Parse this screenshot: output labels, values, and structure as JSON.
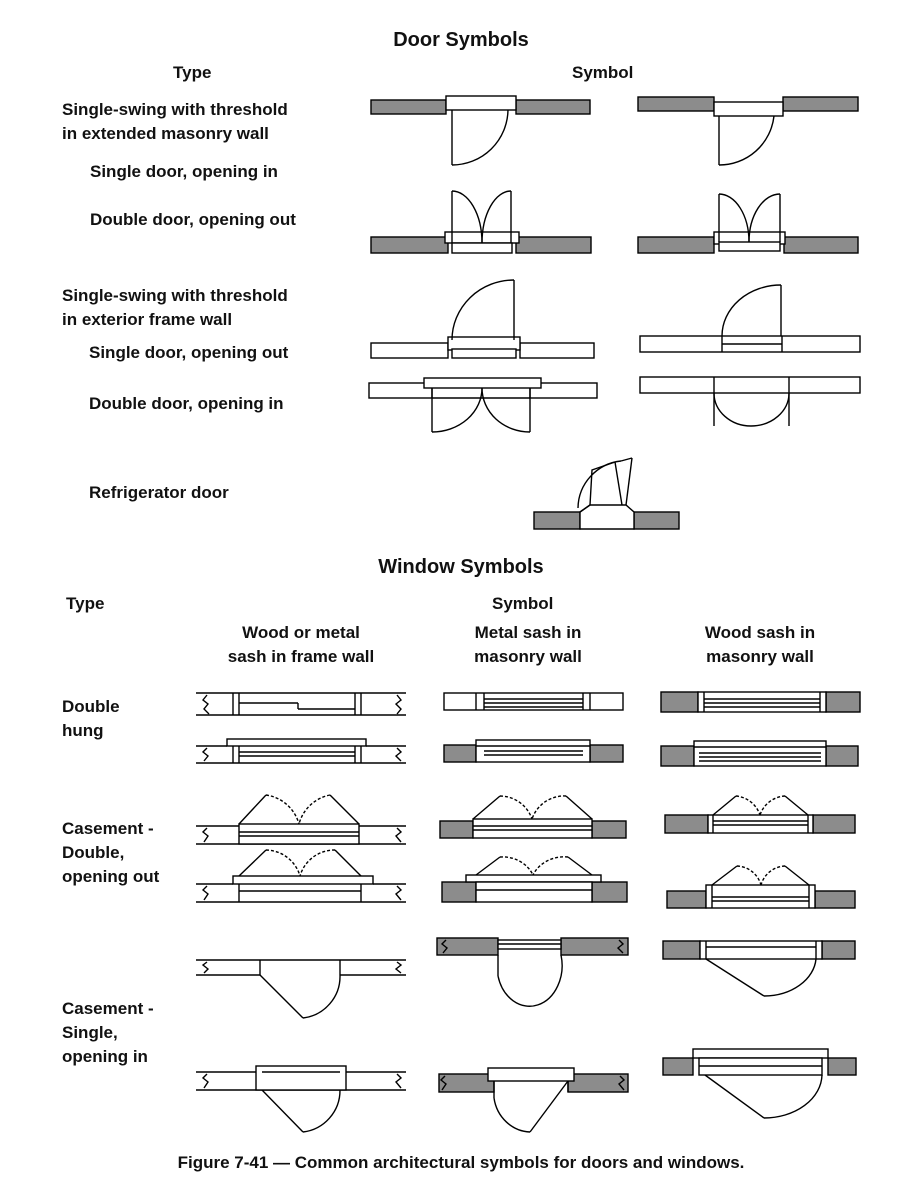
{
  "door_section": {
    "title": "Door Symbols",
    "type_header": "Type",
    "symbol_header": "Symbol",
    "rows": [
      {
        "label": "Single-swing with threshold\nin extended masonry wall"
      },
      {
        "label": "Single door, opening in"
      },
      {
        "label": "Double door, opening out"
      },
      {
        "label": "Single-swing with threshold\nin exterior frame wall"
      },
      {
        "label": "Single door, opening out"
      },
      {
        "label": "Double door, opening in"
      },
      {
        "label": "Refrigerator door"
      }
    ]
  },
  "window_section": {
    "title": "Window Symbols",
    "type_header": "Type",
    "symbol_header": "Symbol",
    "columns": [
      "Wood or metal\nsash in frame wall",
      "Metal sash in\nmasonry wall",
      "Wood sash in\nmasonry wall"
    ],
    "rows": [
      {
        "label": "Double\nhung"
      },
      {
        "label": "Casement -\nDouble,\nopening out"
      },
      {
        "label": "Casement -\nSingle,\nopening in"
      }
    ]
  },
  "caption": "Figure 7-41 — Common architectural symbols for doors and windows.",
  "colors": {
    "masonry_fill": "#8c8c8c",
    "line": "#000000",
    "background": "#ffffff"
  }
}
